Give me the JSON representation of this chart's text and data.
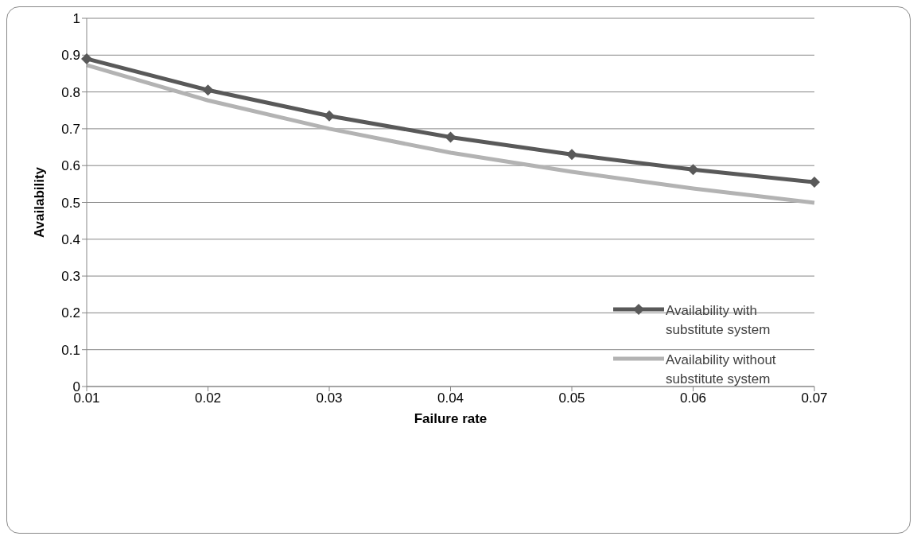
{
  "chart_data": {
    "type": "line",
    "xlabel": "Failure rate",
    "ylabel": "Availability",
    "categories": [
      "0.01",
      "0.02",
      "0.03",
      "0.04",
      "0.05",
      "0.06",
      "0.07"
    ],
    "series": [
      {
        "name": "Availability with substitute system",
        "color": "#595959",
        "marker": "diamond",
        "values": [
          0.89,
          0.805,
          0.735,
          0.677,
          0.63,
          0.589,
          0.555
        ]
      },
      {
        "name": "Availability without substitute system",
        "color": "#b3b3b3",
        "marker": "none",
        "values": [
          0.873,
          0.777,
          0.7,
          0.635,
          0.583,
          0.538,
          0.499
        ]
      }
    ],
    "ylim": [
      0,
      1
    ],
    "yticks": [
      0,
      0.1,
      0.2,
      0.3,
      0.4,
      0.5,
      0.6,
      0.7,
      0.8,
      0.9,
      1
    ],
    "grid": "y",
    "legend": "right"
  }
}
